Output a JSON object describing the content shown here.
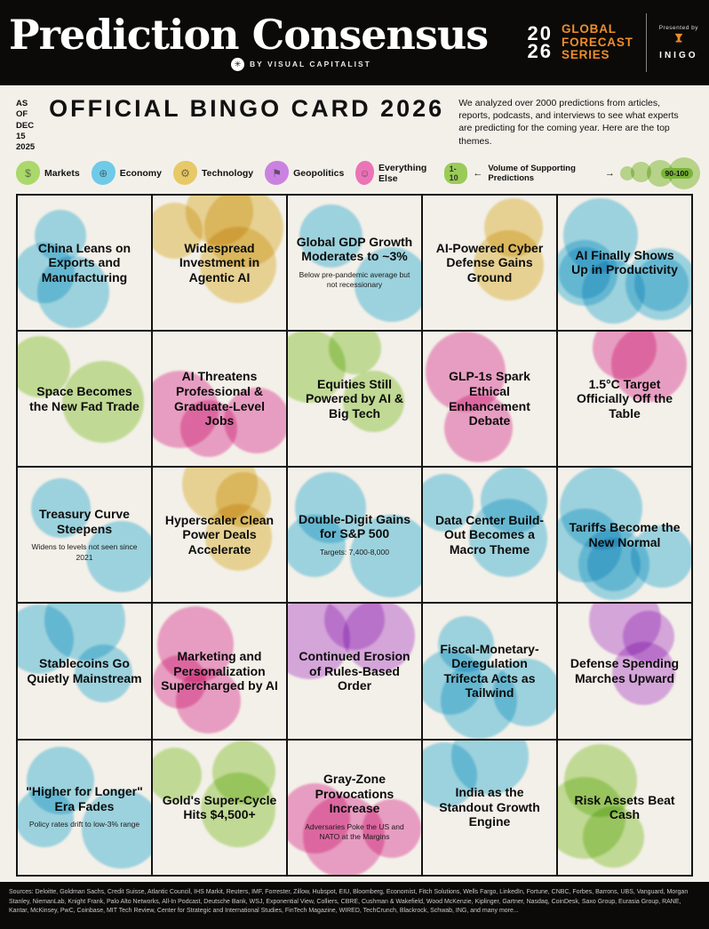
{
  "colors": {
    "background": "#f3f0e9",
    "header_black": "#0b0a08",
    "accent_orange": "#ee8d2b",
    "scale_green": "#8bc53f"
  },
  "header": {
    "title": "Prediction Consensus",
    "byline": "BY VISUAL CAPITALIST",
    "series_year": "20\n26",
    "series_label": "GLOBAL\nFORECAST\nSERIES",
    "presented_by": "Presented by",
    "presenter": "INIGO"
  },
  "subheader": {
    "as_of": "AS OF\nDEC 15 2025",
    "title": "OFFICIAL BINGO CARD 2026",
    "description": "We analyzed over 2000 predictions from articles, reports, podcasts, and interviews to see what experts are predicting for the coming year. Here are the top themes."
  },
  "legend": {
    "categories": [
      {
        "key": "markets",
        "label": "Markets",
        "color": "#9ed455",
        "glyph": "$"
      },
      {
        "key": "economy",
        "label": "Economy",
        "color": "#59c4e8",
        "glyph": "⊕"
      },
      {
        "key": "technology",
        "label": "Technology",
        "color": "#e7c352",
        "glyph": "⚙"
      },
      {
        "key": "geopolitics",
        "label": "Geopolitics",
        "color": "#c46fe0",
        "glyph": "⚑"
      },
      {
        "key": "everything_else",
        "label": "Everything Else",
        "color": "#ea5fae",
        "glyph": "☺"
      }
    ],
    "scale": {
      "min_label": "1-10",
      "arrow_left": "←",
      "axis_label": "Volume of Supporting Predictions",
      "arrow_right": "→",
      "max_label": "90-100"
    }
  },
  "grid": {
    "cells": [
      {
        "title": "China Leans on Exports and Manufacturing",
        "subtitle": "",
        "category": "economy",
        "blobs": 3
      },
      {
        "title": "Widespread Investment in Agentic AI",
        "subtitle": "",
        "category": "technology",
        "blobs": 4
      },
      {
        "title": "Global GDP Growth Moderates to ~3%",
        "subtitle": "Below pre-pandemic average but not recessionary",
        "category": "economy",
        "blobs": 2
      },
      {
        "title": "AI-Powered Cyber Defense Gains Ground",
        "subtitle": "",
        "category": "technology",
        "blobs": 2
      },
      {
        "title": "AI Finally Shows Up in Productivity",
        "subtitle": "",
        "category": "economy",
        "blobs": 6
      },
      {
        "title": "Space Becomes the New Fad Trade",
        "subtitle": "",
        "category": "markets",
        "blobs": 2
      },
      {
        "title": "AI Threatens Professional & Graduate-Level Jobs",
        "subtitle": "",
        "category": "everything_else",
        "blobs": 3
      },
      {
        "title": "Equities Still Powered by AI & Big Tech",
        "subtitle": "",
        "category": "markets",
        "blobs": 3
      },
      {
        "title": "GLP-1s Spark Ethical Enhancement Debate",
        "subtitle": "",
        "category": "everything_else",
        "blobs": 2
      },
      {
        "title": "1.5°C Target Officially Off the Table",
        "subtitle": "",
        "category": "everything_else",
        "blobs": 2
      },
      {
        "title": "Treasury Curve Steepens",
        "subtitle": "Widens to levels not seen since 2021",
        "category": "economy",
        "blobs": 2
      },
      {
        "title": "Hyperscaler Clean Power Deals Accelerate",
        "subtitle": "",
        "category": "technology",
        "blobs": 3
      },
      {
        "title": "Double-Digit Gains for S&P 500",
        "subtitle": "Targets: 7,400-8,000",
        "category": "economy",
        "blobs": 3
      },
      {
        "title": "Data Center Build-Out Becomes a Macro Theme",
        "subtitle": "",
        "category": "economy",
        "blobs": 3
      },
      {
        "title": "Tariffs Become the New Normal",
        "subtitle": "",
        "category": "economy",
        "blobs": 5
      },
      {
        "title": "Stablecoins Go Quietly Mainstream",
        "subtitle": "",
        "category": "economy",
        "blobs": 3
      },
      {
        "title": "Marketing and Personalization Supercharged by AI",
        "subtitle": "",
        "category": "everything_else",
        "blobs": 3
      },
      {
        "title": "Continued Erosion of Rules-Based Order",
        "subtitle": "",
        "category": "geopolitics",
        "blobs": 3
      },
      {
        "title": "Fiscal-Monetary-Deregulation Trifecta Acts as Tailwind",
        "subtitle": "",
        "category": "economy",
        "blobs": 4
      },
      {
        "title": "Defense Spending Marches Upward",
        "subtitle": "",
        "category": "geopolitics",
        "blobs": 3
      },
      {
        "title": "\"Higher for Longer\" Era Fades",
        "subtitle": "Policy rates drift to low-3% range",
        "category": "economy",
        "blobs": 3
      },
      {
        "title": "Gold's Super-Cycle Hits $4,500+",
        "subtitle": "",
        "category": "markets",
        "blobs": 3
      },
      {
        "title": "Gray-Zone Provocations Increase",
        "subtitle": "Adversaries Poke the US and NATO at the Margins",
        "category": "everything_else",
        "blobs": 3
      },
      {
        "title": "India as the Standout Growth Engine",
        "subtitle": "",
        "category": "economy",
        "blobs": 2
      },
      {
        "title": "Risk Assets Beat Cash",
        "subtitle": "",
        "category": "markets",
        "blobs": 3
      }
    ]
  },
  "footer": {
    "sources": "Sources: Deloitte, Goldman Sachs, Credit Suisse, Atlantic Council, IHS Markit, Reuters, IMF, Forrester, Zillow, Hubspot, EIU, Bloomberg, Economist, Fitch Solutions, Wells Fargo, LinkedIn, Fortune, CNBC, Forbes, Barrons, UBS, Vanguard, Morgan Stanley, NiemanLab, Knight Frank, Palo Alto Networks, All-In Podcast, Deutsche Bank, WSJ, Exponential View, Colliers, CBRE, Cushman & Wakefield, Wood McKenzie, Kiplinger, Gartner, Nasdaq, CoinDesk, Saxo Group, Eurasia Group, RANE, Kantar, McKinsey, PwC, Coinbase, MIT Tech Review, Center for Strategic and International Studies, FinTech Magazine, WIRED, TechCrunch, Blackrock, Schwab, ING, and many more..."
  }
}
